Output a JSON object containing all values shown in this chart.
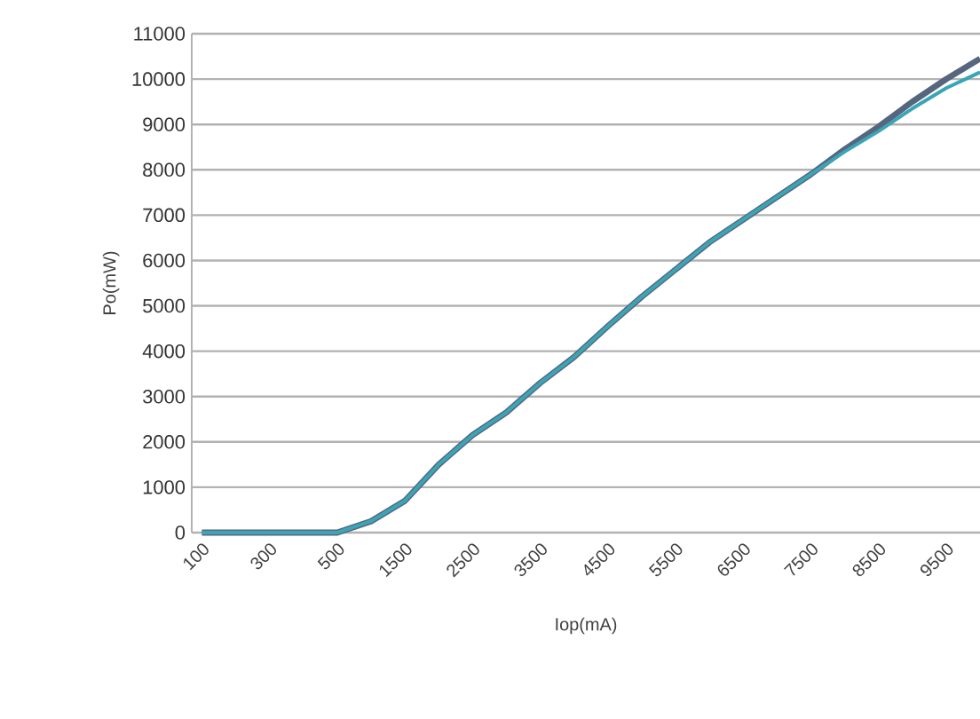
{
  "chart_data": {
    "type": "line",
    "xlabel": "Iop(mA)",
    "ylabel": "Po(mW)",
    "categories": [
      "100",
      null,
      "300",
      null,
      "500",
      null,
      "1500",
      null,
      "2500",
      null,
      "3500",
      null,
      "4500",
      null,
      "5500",
      null,
      "6500",
      null,
      "7500",
      null,
      "8500",
      null,
      "9500",
      null
    ],
    "series": [
      {
        "color": "#56667f",
        "values": [
          0,
          0,
          0,
          0,
          0,
          250,
          700,
          1500,
          2150,
          2650,
          3300,
          3870,
          4550,
          5200,
          5800,
          6400,
          6900,
          7400,
          7900,
          8450,
          8950,
          9500,
          10000,
          10450
        ]
      },
      {
        "color": "#3aa5b5",
        "values": [
          0,
          0,
          0,
          0,
          0,
          250,
          700,
          1500,
          2150,
          2650,
          3300,
          3870,
          4550,
          5200,
          5800,
          6400,
          6900,
          7400,
          7900,
          8400,
          8850,
          9350,
          9800,
          10150
        ]
      }
    ],
    "ylim": [
      0,
      11000
    ],
    "yticks": [
      0,
      1000,
      2000,
      3000,
      4000,
      5000,
      6000,
      7000,
      8000,
      9000,
      10000,
      11000
    ],
    "grid": "y",
    "legend": false,
    "marker": "none",
    "line_style": "solid"
  }
}
